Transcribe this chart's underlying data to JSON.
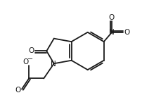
{
  "bg_color": "#ffffff",
  "line_color": "#1a1a1a",
  "line_width": 1.3,
  "figsize": [
    2.03,
    1.59
  ],
  "dpi": 100,
  "xlim": [
    0,
    10
  ],
  "ylim": [
    0,
    7.8
  ]
}
